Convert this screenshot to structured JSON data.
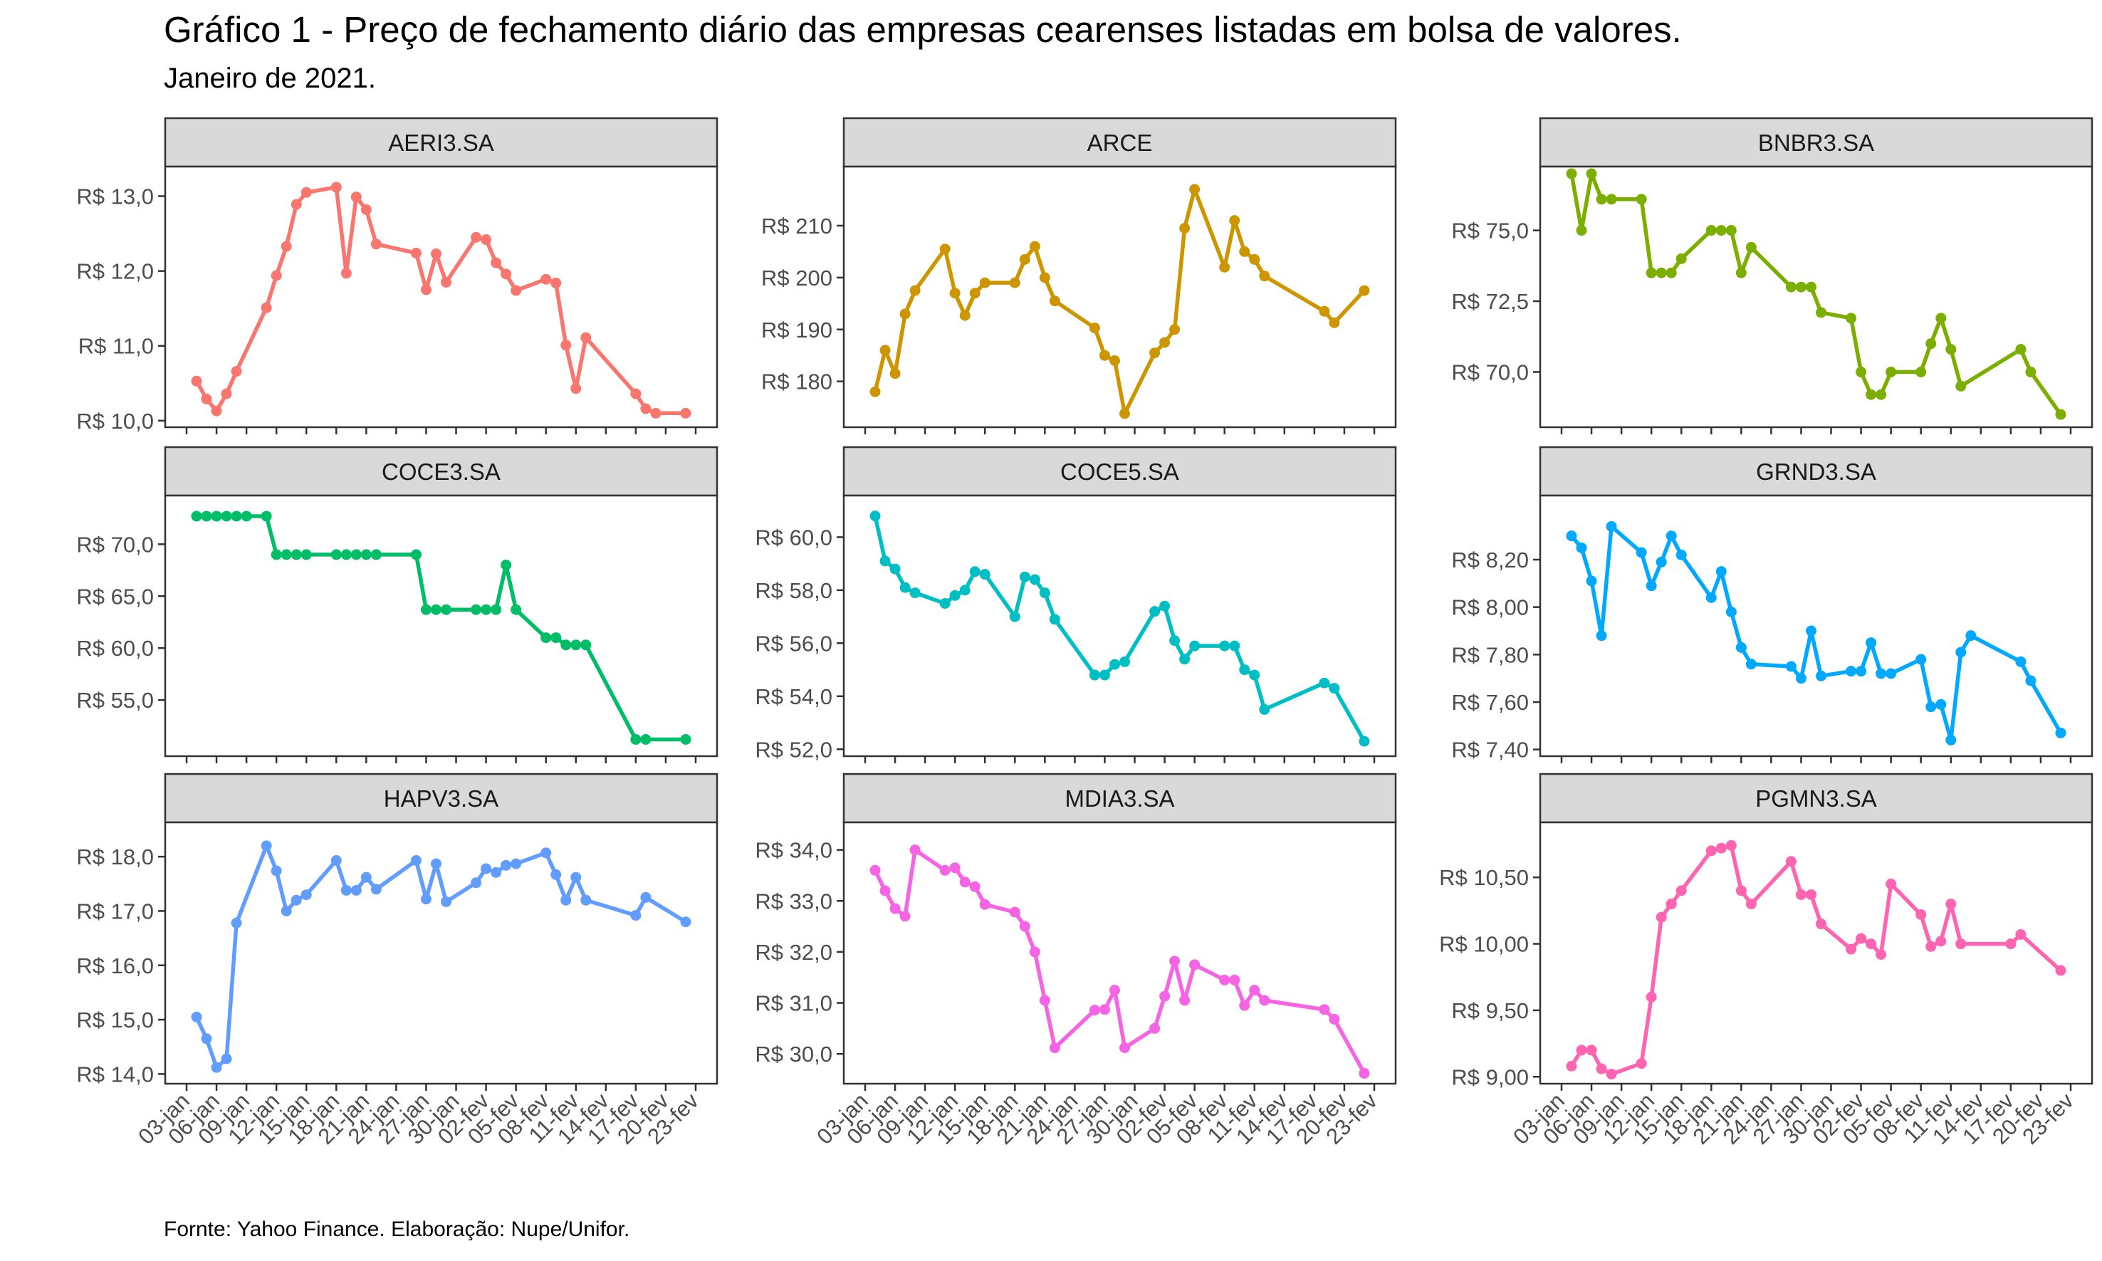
{
  "title": "Gráfico 1 - Preço de fechamento diário das empresas cearenses listadas em bolsa de valores.",
  "subtitle": "Janeiro de 2021.",
  "caption": "Fornte: Yahoo Finance. Elaboração: Nupe/Unifor.",
  "chart_data": {
    "type": "line",
    "x_ticks": [
      "03-jan",
      "06-jan",
      "09-jan",
      "12-jan",
      "15-jan",
      "18-jan",
      "21-jan",
      "24-jan",
      "27-jan",
      "30-jan",
      "02-fev",
      "05-fev",
      "08-fev",
      "11-fev",
      "14-fev",
      "17-fev",
      "20-fev",
      "23-fev"
    ],
    "x_dates": [
      "04-jan",
      "05-jan",
      "06-jan",
      "07-jan",
      "08-jan",
      "11-jan",
      "12-jan",
      "13-jan",
      "14-jan",
      "15-jan",
      "18-jan",
      "19-jan",
      "20-jan",
      "21-jan",
      "22-jan",
      "26-jan",
      "27-jan",
      "28-jan",
      "29-jan",
      "01-fev",
      "02-fev",
      "03-fev",
      "04-fev",
      "05-fev",
      "08-fev",
      "09-fev",
      "10-fev",
      "11-fev",
      "12-fev",
      "17-fev",
      "18-fev",
      "19-fev",
      "22-fev"
    ],
    "grid": false,
    "legend": "none",
    "panels": [
      {
        "name": "AERI3.SA",
        "color": "#F8766D",
        "yticks": [
          "R$ 10,0",
          "R$ 11,0",
          "R$ 12,0",
          "R$ 13,0"
        ],
        "ytick_values": [
          10,
          11,
          12,
          13
        ],
        "ylim": [
          9.97,
          13.3
        ],
        "values": [
          10.53,
          10.29,
          10.13,
          10.36,
          10.66,
          11.51,
          11.94,
          12.33,
          12.89,
          13.05,
          13.12,
          11.97,
          12.99,
          12.82,
          12.36,
          12.24,
          11.75,
          12.23,
          11.85,
          12.45,
          12.42,
          12.11,
          11.96,
          11.74,
          11.89,
          11.84,
          11.01,
          10.43,
          11.11,
          10.36,
          10.16,
          10.1,
          10.1
        ],
        "xs": [
          1,
          2,
          3,
          4,
          5,
          8,
          9,
          10,
          11,
          12,
          15,
          16,
          17,
          18,
          19,
          23,
          24,
          25,
          26,
          29,
          30,
          31,
          32,
          33,
          36,
          37,
          38,
          39,
          40,
          45,
          46,
          47,
          50
        ]
      },
      {
        "name": "ARCE",
        "color": "#CD9600",
        "yticks": [
          "R$ 180",
          "R$ 190",
          "R$ 200",
          "R$ 210"
        ],
        "ytick_values": [
          180,
          190,
          200,
          210
        ],
        "ylim": [
          172,
          220
        ],
        "values": [
          178,
          186,
          181.5,
          193,
          197.5,
          205.5,
          197,
          192.7,
          197,
          199,
          199,
          203.5,
          206,
          200,
          195.5,
          190.3,
          185,
          184,
          173.8,
          185.5,
          187.5,
          190,
          209.5,
          217,
          202,
          211,
          205,
          203.5,
          200.3,
          193.5,
          191.3,
          197.5
        ],
        "xs": [
          1,
          2,
          3,
          4,
          5,
          8,
          9,
          10,
          11,
          12,
          15,
          16,
          17,
          18,
          19,
          23,
          24,
          25,
          26,
          29,
          30,
          31,
          32,
          33,
          36,
          37,
          38,
          39,
          40,
          46,
          47,
          50
        ]
      },
      {
        "name": "BNBR3.SA",
        "color": "#7CAE00",
        "yticks": [
          "R$ 70,0",
          "R$ 72,5",
          "R$ 75,0"
        ],
        "ytick_values": [
          70,
          72.5,
          75
        ],
        "ylim": [
          68.2,
          77.0
        ],
        "values": [
          77.0,
          75.0,
          77.0,
          76.1,
          76.1,
          76.1,
          73.5,
          73.5,
          73.5,
          74.0,
          75.0,
          75.0,
          75.0,
          73.5,
          74.4,
          73.0,
          73.0,
          73.0,
          72.1,
          71.9,
          70.0,
          69.2,
          69.2,
          70.0,
          70.0,
          71.0,
          71.9,
          70.8,
          69.5,
          70.8,
          70.0,
          68.5
        ],
        "xs": [
          1,
          2,
          3,
          4,
          5,
          8,
          9,
          10,
          11,
          12,
          15,
          16,
          17,
          18,
          19,
          23,
          24,
          25,
          26,
          29,
          30,
          31,
          32,
          33,
          36,
          37,
          38,
          39,
          40,
          46,
          47,
          50
        ]
      },
      {
        "name": "COCE3.SA",
        "color": "#00BE67",
        "yticks": [
          "R$ 55,0",
          "R$ 60,0",
          "R$ 65,0",
          "R$ 70,0"
        ],
        "ytick_values": [
          55,
          60,
          65,
          70
        ],
        "ylim": [
          50.0,
          74.0
        ],
        "values": [
          72.7,
          72.7,
          72.7,
          72.7,
          72.7,
          72.7,
          72.7,
          69.0,
          69.0,
          69.0,
          69.0,
          69.0,
          69.0,
          69.0,
          69.0,
          69.0,
          69.0,
          63.7,
          63.7,
          63.7,
          63.7,
          63.7,
          63.7,
          68.0,
          63.7,
          61.0,
          61.0,
          60.3,
          60.3,
          60.3,
          51.2,
          51.2,
          51.2
        ],
        "xs": [
          1,
          2,
          3,
          4,
          5,
          6,
          8,
          9,
          10,
          11,
          12,
          15,
          16,
          17,
          18,
          19,
          23,
          24,
          25,
          26,
          29,
          30,
          31,
          32,
          33,
          36,
          37,
          38,
          39,
          40,
          45,
          46,
          50
        ]
      },
      {
        "name": "COCE5.SA",
        "color": "#00BFC4",
        "yticks": [
          "R$ 52,0",
          "R$ 54,0",
          "R$ 56,0",
          "R$ 58,0",
          "R$ 60,0"
        ],
        "ytick_values": [
          52,
          54,
          56,
          58,
          60
        ],
        "ylim": [
          51.9,
          61.3
        ],
        "values": [
          60.8,
          59.1,
          58.8,
          58.1,
          57.9,
          57.5,
          57.8,
          58.0,
          58.7,
          58.6,
          57.0,
          58.5,
          58.4,
          57.9,
          56.9,
          54.8,
          54.8,
          55.2,
          55.3,
          57.2,
          57.4,
          56.1,
          55.4,
          55.9,
          55.9,
          55.9,
          55.0,
          54.8,
          53.5,
          54.5,
          54.3,
          52.3
        ],
        "xs": [
          1,
          2,
          3,
          4,
          5,
          8,
          9,
          10,
          11,
          12,
          15,
          16,
          17,
          18,
          19,
          23,
          24,
          25,
          26,
          29,
          30,
          31,
          32,
          33,
          36,
          37,
          38,
          39,
          40,
          46,
          47,
          50
        ]
      },
      {
        "name": "GRND3.SA",
        "color": "#00A9FF",
        "yticks": [
          "R$ 7,40",
          "R$ 7,60",
          "R$ 7,80",
          "R$ 8,00",
          "R$ 8,20"
        ],
        "ytick_values": [
          7.4,
          7.6,
          7.8,
          8.0,
          8.2
        ],
        "ylim": [
          7.39,
          8.44
        ],
        "values": [
          8.3,
          8.25,
          8.11,
          7.88,
          8.34,
          8.23,
          8.09,
          8.19,
          8.3,
          8.22,
          8.04,
          8.15,
          7.98,
          7.83,
          7.76,
          7.75,
          7.7,
          7.9,
          7.71,
          7.73,
          7.73,
          7.85,
          7.72,
          7.72,
          7.78,
          7.58,
          7.59,
          7.44,
          7.81,
          7.88,
          7.77,
          7.69,
          7.47
        ],
        "xs": [
          1,
          2,
          3,
          4,
          5,
          8,
          9,
          10,
          11,
          12,
          15,
          16,
          17,
          18,
          19,
          23,
          24,
          25,
          26,
          29,
          30,
          31,
          32,
          33,
          36,
          37,
          38,
          39,
          40,
          41,
          46,
          47,
          50
        ]
      },
      {
        "name": "HAPV3.SA",
        "color": "#619CFF",
        "yticks": [
          "R$ 14,0",
          "R$ 15,0",
          "R$ 16,0",
          "R$ 17,0",
          "R$ 18,0"
        ],
        "ytick_values": [
          14,
          15,
          16,
          17,
          18
        ],
        "ylim": [
          13.9,
          18.5
        ],
        "values": [
          15.05,
          14.65,
          14.12,
          14.28,
          16.78,
          18.2,
          17.74,
          17.0,
          17.2,
          17.3,
          17.93,
          17.38,
          17.38,
          17.62,
          17.4,
          17.93,
          17.22,
          17.87,
          17.17,
          17.52,
          17.78,
          17.71,
          17.84,
          17.87,
          18.07,
          17.67,
          17.2,
          17.62,
          17.2,
          16.92,
          17.25,
          16.8
        ],
        "xs": [
          1,
          2,
          3,
          4,
          5,
          8,
          9,
          10,
          11,
          12,
          15,
          16,
          17,
          18,
          19,
          23,
          24,
          25,
          26,
          29,
          30,
          31,
          32,
          33,
          36,
          37,
          38,
          39,
          40,
          45,
          46,
          50
        ]
      },
      {
        "name": "MDIA3.SA",
        "color": "#F564E3",
        "yticks": [
          "R$ 30,0",
          "R$ 31,0",
          "R$ 32,0",
          "R$ 33,0",
          "R$ 34,0"
        ],
        "ytick_values": [
          30,
          31,
          32,
          33,
          34
        ],
        "ylim": [
          29.5,
          34.4
        ],
        "values": [
          33.6,
          33.2,
          32.85,
          32.7,
          34.0,
          33.6,
          33.65,
          33.37,
          33.28,
          32.93,
          32.78,
          32.5,
          32.0,
          31.05,
          30.12,
          30.86,
          30.87,
          31.25,
          30.12,
          30.5,
          31.13,
          31.82,
          31.05,
          31.75,
          31.45,
          31.45,
          30.95,
          31.25,
          31.05,
          30.87,
          30.68,
          29.62
        ],
        "xs": [
          1,
          2,
          3,
          4,
          5,
          8,
          9,
          10,
          11,
          12,
          15,
          16,
          17,
          18,
          19,
          23,
          24,
          25,
          26,
          29,
          30,
          31,
          32,
          33,
          36,
          37,
          38,
          39,
          40,
          46,
          47,
          50
        ]
      },
      {
        "name": "PGMN3.SA",
        "color": "#FF64B0",
        "yticks": [
          "R$ 9,00",
          "R$ 9,50",
          "R$ 10,00",
          "R$ 10,50"
        ],
        "ytick_values": [
          9.0,
          9.5,
          10.0,
          10.5
        ],
        "ylim": [
          8.98,
          10.86
        ],
        "values": [
          9.08,
          9.2,
          9.2,
          9.06,
          9.02,
          9.1,
          9.6,
          10.2,
          10.3,
          10.4,
          10.7,
          10.72,
          10.74,
          10.4,
          10.3,
          10.62,
          10.37,
          10.37,
          10.15,
          9.96,
          10.04,
          10.0,
          9.92,
          10.45,
          10.22,
          9.98,
          10.02,
          10.3,
          10.0,
          10.0,
          10.07,
          9.8
        ],
        "xs": [
          1,
          2,
          3,
          4,
          5,
          8,
          9,
          10,
          11,
          12,
          15,
          16,
          17,
          18,
          19,
          23,
          24,
          25,
          26,
          29,
          30,
          31,
          32,
          33,
          36,
          37,
          38,
          39,
          40,
          45,
          46,
          50
        ]
      }
    ]
  }
}
